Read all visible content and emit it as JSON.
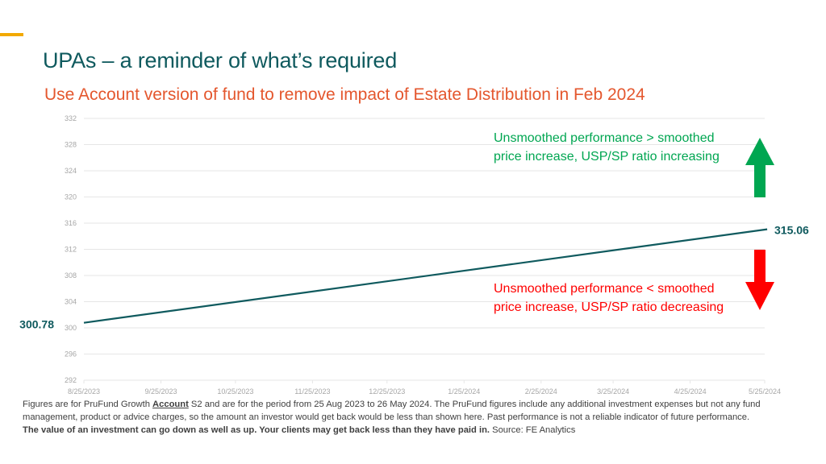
{
  "slide": {
    "title": "UPAs – a reminder of what’s required",
    "subtitle": "Use Account version of fund to remove impact of Estate Distribution in Feb 2024",
    "colors": {
      "accent": "#f2a900",
      "title": "#0f5a5e",
      "subtitle": "#e4572e",
      "line": "#0f5a5e",
      "up": "#00a651",
      "down": "#ff0000"
    },
    "annotations": {
      "up_line1": "Unsmoothed performance > smoothed",
      "up_line2": "price increase, USP/SP ratio increasing",
      "down_line1": "Unsmoothed performance < smoothed",
      "down_line2": "price increase, USP/SP ratio decreasing",
      "up_icon": "arrow-up-icon",
      "down_icon": "arrow-down-icon"
    },
    "footer": {
      "part1": "Figures are for PruFund Growth ",
      "account": "Account",
      "part2": " S2 and are for the period from 25 Aug 2023 to 26 May 2024. The PruFund figures include any additional investment expenses but not any fund management, product or advice charges, so the amount an investor would get back would be less than shown here.  Past performance is not a reliable indicator of future performance.",
      "bold": "The value of an investment can go down as well as up. Your clients may get back less than they have paid in.",
      "source": "  Source: FE Analytics"
    }
  },
  "chart_data": {
    "type": "line",
    "title": "",
    "xlabel": "",
    "ylabel": "",
    "ylim": [
      292,
      332
    ],
    "yticks": [
      332,
      328,
      324,
      320,
      316,
      312,
      308,
      304,
      300,
      296,
      292
    ],
    "xticks": [
      "8/25/2023",
      "9/25/2023",
      "10/25/2023",
      "11/25/2023",
      "12/25/2023",
      "1/25/2024",
      "2/25/2024",
      "3/25/2024",
      "4/25/2024",
      "5/25/2024"
    ],
    "grid": true,
    "legend": "none",
    "series": [
      {
        "name": "PruFund Growth Account S2",
        "x": [
          "8/25/2023",
          "5/26/2024"
        ],
        "values": [
          300.78,
          315.06
        ]
      }
    ],
    "start_label": "300.78",
    "end_label": "315.06"
  }
}
